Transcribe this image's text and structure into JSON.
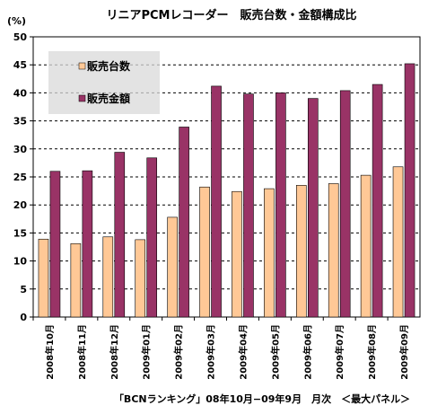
{
  "chart_data": {
    "type": "bar",
    "title": "リニアPCMレコーダー　販売台数・金額構成比",
    "ylabel": "(%)",
    "ylim": [
      0,
      50
    ],
    "yticks": [
      0,
      5,
      10,
      15,
      20,
      25,
      30,
      35,
      40,
      45,
      50
    ],
    "grid": "dashed horizontal",
    "legend_position": "top-left",
    "categories": [
      "2008年10月",
      "2008年11月",
      "2008年12月",
      "2009年01月",
      "2009年02月",
      "2009年03月",
      "2009年04月",
      "2009年05月",
      "2009年06月",
      "2009年07月",
      "2009年08月",
      "2009年09月"
    ],
    "series": [
      {
        "name": "販売台数",
        "color": "#FFC896",
        "values": [
          13.9,
          13.1,
          14.3,
          13.8,
          17.8,
          23.2,
          22.4,
          22.9,
          23.5,
          23.8,
          25.3,
          26.8
        ]
      },
      {
        "name": "販売金額",
        "color": "#993366",
        "values": [
          26.0,
          26.1,
          29.4,
          28.4,
          33.9,
          41.2,
          39.8,
          40.0,
          39.0,
          40.4,
          41.5,
          45.2
        ]
      }
    ],
    "footnote": "「BCNランキング」08年10月−09年9月　月次　＜最大パネル＞"
  },
  "colors": {
    "plot_background": "#FFFFFF",
    "grid": "#000000",
    "legend_background": "#D9D9D9"
  }
}
